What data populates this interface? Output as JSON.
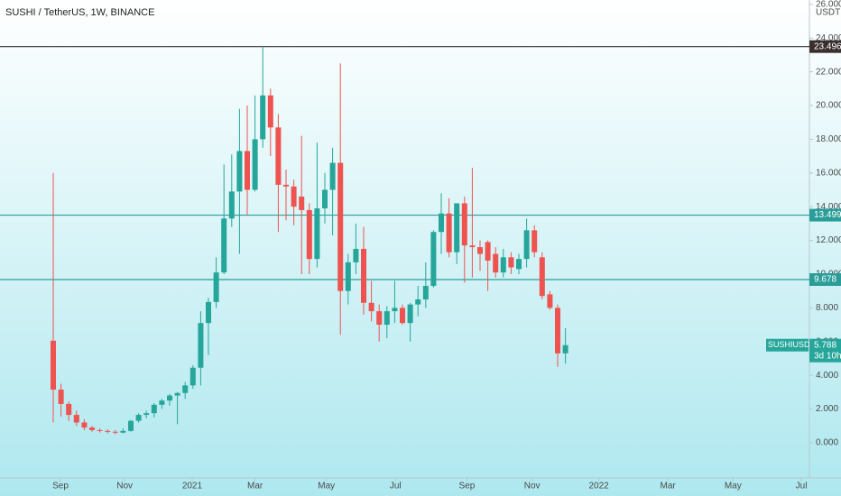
{
  "chart_data": {
    "type": "candlestick",
    "title": "SUSHI / TetherUS, 1W, BINANCE",
    "currency": "USDT",
    "symbol_label": "SUSHIUSDT",
    "countdown": "3d 10h",
    "up_color": "#26a69a",
    "down_color": "#ef5350",
    "open": [
      6.05,
      3.15,
      2.3,
      1.65,
      1.2,
      0.9,
      0.75,
      0.7,
      0.65,
      0.6,
      0.7,
      1.3,
      1.65,
      1.75,
      2.25,
      2.5,
      2.8,
      2.95,
      3.4,
      4.45,
      7.1,
      8.35,
      10.1,
      13.3,
      14.9,
      17.3,
      15.0,
      18.0,
      20.6,
      18.7,
      15.3,
      15.2,
      14.6,
      13.8,
      10.9,
      13.9,
      15.0,
      16.6,
      9.0,
      10.7,
      11.5,
      8.3,
      7.8,
      7.0,
      7.8,
      8.0,
      7.1,
      8.2,
      8.5,
      9.3,
      12.5,
      13.6,
      11.3,
      14.2,
      11.7,
      11.6,
      11.9,
      11.2,
      10.1,
      11.0,
      10.3,
      10.9,
      12.6,
      11.0,
      8.8,
      8.0,
      5.3
    ],
    "high": [
      16.0,
      3.5,
      2.45,
      1.9,
      1.4,
      1.0,
      0.85,
      0.8,
      0.75,
      0.85,
      1.35,
      1.75,
      1.9,
      2.35,
      2.6,
      2.9,
      3.0,
      3.6,
      4.6,
      7.8,
      8.6,
      11.0,
      16.5,
      17.1,
      19.8,
      20.0,
      20.6,
      23.5,
      21.0,
      19.5,
      16.2,
      15.6,
      18.2,
      14.2,
      17.8,
      16.0,
      17.5,
      22.5,
      11.2,
      13.0,
      12.8,
      9.6,
      8.2,
      8.1,
      9.6,
      8.2,
      8.3,
      9.3,
      10.7,
      12.6,
      14.8,
      14.5,
      14.2,
      14.6,
      16.3,
      12.0,
      12.0,
      11.6,
      11.5,
      11.3,
      11.2,
      13.3,
      12.9,
      11.3,
      9.0,
      8.2,
      6.8
    ],
    "low": [
      1.2,
      1.55,
      1.3,
      1.0,
      0.75,
      0.65,
      0.6,
      0.55,
      0.5,
      0.55,
      0.65,
      1.2,
      1.45,
      1.5,
      2.0,
      2.2,
      1.1,
      2.6,
      3.2,
      3.4,
      5.2,
      8.0,
      10.0,
      12.8,
      11.2,
      13.5,
      14.9,
      17.5,
      17.0,
      12.5,
      13.2,
      12.9,
      10.0,
      10.0,
      10.4,
      13.0,
      12.3,
      6.4,
      8.2,
      10.0,
      7.6,
      7.2,
      6.0,
      6.2,
      7.1,
      7.0,
      6.0,
      7.5,
      8.0,
      9.2,
      11.2,
      11.0,
      10.6,
      9.5,
      9.8,
      10.2,
      9.0,
      9.8,
      9.8,
      10.0,
      10.0,
      10.4,
      11.0,
      8.5,
      7.9,
      4.5,
      4.7
    ],
    "close": [
      3.15,
      2.3,
      1.65,
      1.2,
      0.9,
      0.75,
      0.7,
      0.65,
      0.6,
      0.7,
      1.3,
      1.65,
      1.75,
      2.25,
      2.5,
      2.8,
      2.95,
      3.4,
      4.45,
      7.1,
      8.35,
      10.1,
      13.3,
      14.9,
      17.3,
      15.0,
      18.0,
      20.6,
      18.7,
      15.3,
      15.2,
      14.0,
      13.8,
      10.9,
      13.9,
      15.0,
      16.6,
      9.0,
      10.7,
      11.5,
      8.3,
      7.8,
      7.0,
      7.8,
      8.0,
      7.1,
      8.2,
      8.5,
      9.3,
      12.5,
      13.6,
      11.3,
      14.2,
      11.7,
      11.6,
      11.2,
      10.8,
      10.1,
      11.0,
      10.4,
      10.9,
      12.6,
      11.3,
      8.7,
      8.0,
      5.3,
      5.788
    ],
    "hlines": [
      {
        "value": 23.496,
        "color": "#3a2f2f"
      },
      {
        "value": 13.499,
        "color": "#2a9d98"
      },
      {
        "value": 9.678,
        "color": "#2a9d98"
      }
    ],
    "ylim": [
      -2.09,
      26.26
    ],
    "yticks": [
      {
        "value": 0,
        "label": "0.000"
      },
      {
        "value": 2,
        "label": "2.000"
      },
      {
        "value": 4,
        "label": "4.000"
      },
      {
        "value": 6,
        "label": "6.000"
      },
      {
        "value": 8,
        "label": "8.000"
      },
      {
        "value": 10,
        "label": "10.000"
      },
      {
        "value": 12,
        "label": "12.000"
      },
      {
        "value": 14,
        "label": "14.000"
      },
      {
        "value": 16,
        "label": "16.000"
      },
      {
        "value": 18,
        "label": "18.000"
      },
      {
        "value": 20,
        "label": "20.000"
      },
      {
        "value": 22,
        "label": "22.000"
      },
      {
        "value": 24,
        "label": "24.000"
      },
      {
        "value": 26,
        "label": "26.000"
      }
    ],
    "xlim": [
      -6.86,
      97.44
    ],
    "xticks": [
      {
        "value": 0.93,
        "label": "Sep"
      },
      {
        "value": 9.2,
        "label": "Nov"
      },
      {
        "value": 17.9,
        "label": "2021"
      },
      {
        "value": 26.0,
        "label": "Mar"
      },
      {
        "value": 35.2,
        "label": "May"
      },
      {
        "value": 44.1,
        "label": "Jul"
      },
      {
        "value": 53.3,
        "label": "Sep"
      },
      {
        "value": 61.7,
        "label": "Nov"
      },
      {
        "value": 70.3,
        "label": "2022"
      },
      {
        "value": 79.2,
        "label": "Mar"
      },
      {
        "value": 87.6,
        "label": "May"
      },
      {
        "value": 96.4,
        "label": "Jul"
      }
    ]
  }
}
